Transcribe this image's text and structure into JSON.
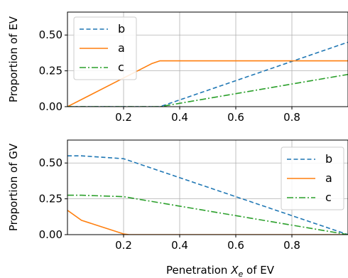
{
  "chart_data": [
    {
      "type": "line",
      "title": "",
      "xlabel": "",
      "ylabel": "Proportion of EV",
      "xlim": [
        0.0,
        1.0
      ],
      "ylim": [
        0.0,
        0.66
      ],
      "xticks": [
        "0.2",
        "0.4",
        "0.6",
        "0.8"
      ],
      "xtick_values": [
        0.2,
        0.4,
        0.6,
        0.8
      ],
      "yticks": [
        "0.00",
        "0.25",
        "0.50"
      ],
      "ytick_values": [
        0.0,
        0.25,
        0.5
      ],
      "grid": true,
      "legend_position": "top-left",
      "series": [
        {
          "name": "b",
          "color": "#1f77b4",
          "style": "dashed",
          "x": [
            0.0,
            0.33,
            1.0
          ],
          "y": [
            0.0,
            0.0,
            0.45
          ]
        },
        {
          "name": "a",
          "color": "#ff7f0e",
          "style": "solid",
          "x": [
            0.0,
            0.3,
            0.33,
            1.0
          ],
          "y": [
            0.0,
            0.3,
            0.32,
            0.32
          ]
        },
        {
          "name": "c",
          "color": "#2ca02c",
          "style": "dashdot",
          "x": [
            0.0,
            0.33,
            1.0
          ],
          "y": [
            0.0,
            0.0,
            0.225
          ]
        }
      ]
    },
    {
      "type": "line",
      "title": "",
      "xlabel": "Penetration X_e of EV",
      "xlabel_main": "Penetration ",
      "xlabel_symbol": "X",
      "xlabel_subscript": "e",
      "xlabel_rest": " of EV",
      "ylabel": "Proportion of GV",
      "xlim": [
        0.0,
        1.0
      ],
      "ylim": [
        0.0,
        0.66
      ],
      "xticks": [
        "0.2",
        "0.4",
        "0.6",
        "0.8"
      ],
      "xtick_values": [
        0.2,
        0.4,
        0.6,
        0.8
      ],
      "yticks": [
        "0.00",
        "0.25",
        "0.50"
      ],
      "ytick_values": [
        0.0,
        0.25,
        0.5
      ],
      "grid": true,
      "legend_position": "top-right",
      "series": [
        {
          "name": "b",
          "color": "#1f77b4",
          "style": "dashed",
          "x": [
            0.0,
            0.05,
            0.2,
            1.0
          ],
          "y": [
            0.55,
            0.55,
            0.53,
            0.0
          ]
        },
        {
          "name": "a",
          "color": "#ff7f0e",
          "style": "solid",
          "x": [
            0.0,
            0.05,
            0.2,
            0.22,
            1.0
          ],
          "y": [
            0.17,
            0.1,
            0.005,
            0.0,
            0.0
          ]
        },
        {
          "name": "c",
          "color": "#2ca02c",
          "style": "dashdot",
          "x": [
            0.0,
            0.05,
            0.2,
            1.0
          ],
          "y": [
            0.275,
            0.275,
            0.265,
            0.0
          ]
        }
      ]
    }
  ]
}
